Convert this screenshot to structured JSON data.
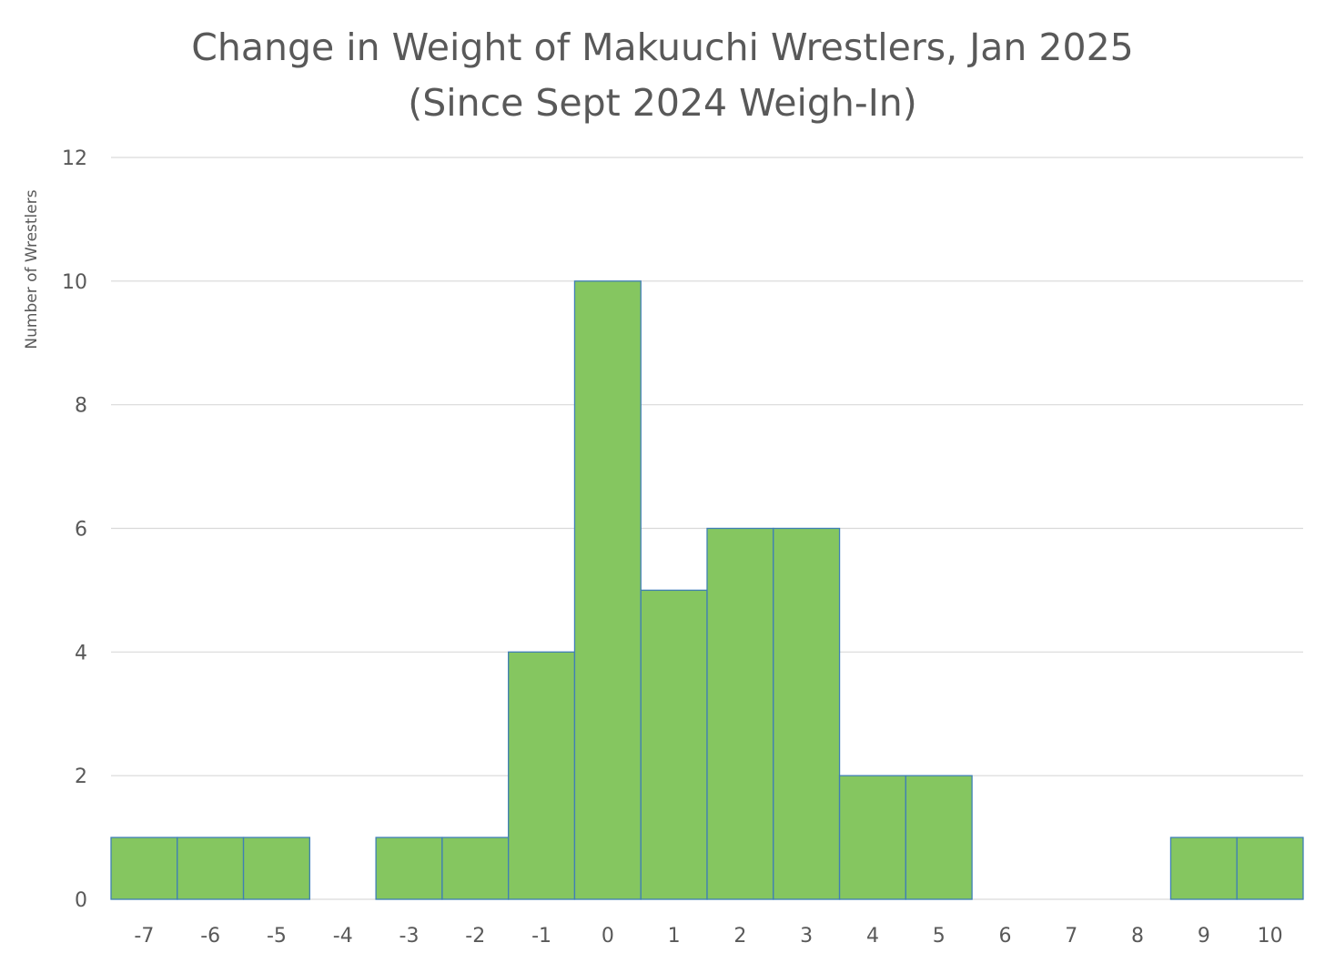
{
  "chart_data": {
    "type": "bar",
    "title": "Change in Weight of Makuuchi Wrestlers, Jan 2025",
    "subtitle": "(Since Sept 2024 Weigh-In)",
    "ylabel": "Number of Wrestlers",
    "xlabel": "",
    "categories": [
      "-7",
      "-6",
      "-5",
      "-4",
      "-3",
      "-2",
      "-1",
      "0",
      "1",
      "2",
      "3",
      "4",
      "5",
      "6",
      "7",
      "8",
      "9",
      "10"
    ],
    "values": [
      1,
      1,
      1,
      0,
      1,
      1,
      4,
      10,
      5,
      6,
      6,
      2,
      2,
      0,
      0,
      0,
      1,
      1
    ],
    "ylim": [
      0,
      12
    ],
    "yticks": [
      0,
      2,
      4,
      6,
      8,
      10,
      12
    ],
    "grid": true,
    "legend": "none",
    "bar_fill": "#85c660",
    "bar_border": "#3f7fb5"
  }
}
